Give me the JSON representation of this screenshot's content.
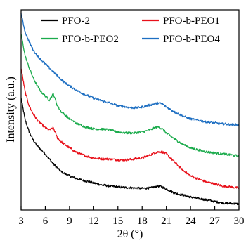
{
  "chart_data": {
    "type": "line",
    "xlabel": "2θ (°)",
    "ylabel": "Intensity (a.u.)",
    "xlim": [
      3,
      30
    ],
    "ylim": [
      0,
      100
    ],
    "xticks": [
      3,
      6,
      9,
      12,
      15,
      18,
      21,
      24,
      27,
      30
    ],
    "x_tick_labels": [
      "3",
      "6",
      "9",
      "12",
      "15",
      "18",
      "21",
      "24",
      "27",
      "30"
    ],
    "y_tick_labels": false,
    "grid": false,
    "legend_position": "top",
    "series": [
      {
        "name": "PFO-2",
        "color": "#000000",
        "x": [
          3,
          3.5,
          4,
          4.5,
          5,
          5.5,
          6,
          6.5,
          7,
          7.5,
          8,
          9,
          10,
          11,
          12,
          13,
          14,
          15,
          16,
          17,
          18,
          19,
          19.5,
          20,
          20.5,
          21,
          22,
          24,
          26,
          28,
          30
        ],
        "y": [
          56,
          45,
          39,
          35,
          32,
          30,
          28,
          25.5,
          23,
          21,
          19,
          17,
          15.5,
          14.5,
          13.5,
          12.5,
          12,
          11.5,
          11.2,
          11,
          10.8,
          11,
          11.5,
          12,
          11.5,
          10.5,
          8.5,
          6.5,
          5,
          3.5,
          3
        ]
      },
      {
        "name": "PFO-b-PEO1",
        "color": "#e8101a",
        "x": [
          3,
          3.5,
          4,
          4.5,
          5,
          5.5,
          6,
          6.5,
          7,
          7.5,
          8,
          9,
          10,
          11,
          12,
          13,
          14,
          15,
          16,
          17,
          18,
          19,
          19.5,
          20,
          20.5,
          21,
          21.5,
          22,
          23,
          24,
          26,
          28,
          30
        ],
        "y": [
          71,
          59,
          52,
          48,
          45,
          43,
          41,
          40,
          41,
          36,
          34,
          31,
          28.5,
          27,
          26,
          25.5,
          25.5,
          25,
          25,
          25.5,
          26,
          27.5,
          28.5,
          29,
          29,
          28,
          26,
          24,
          20,
          17,
          14,
          12,
          11
        ]
      },
      {
        "name": "PFO-b-PEO2",
        "color": "#1bab4c",
        "x": [
          3,
          3.5,
          4,
          4.5,
          5,
          5.5,
          6,
          6.5,
          7,
          7.5,
          8,
          9,
          10,
          11,
          12,
          13,
          14,
          15,
          16,
          17,
          18,
          19,
          19.5,
          20,
          20.5,
          21,
          22,
          23,
          24,
          26,
          28,
          30
        ],
        "y": [
          88,
          77,
          71,
          66,
          62,
          59,
          57,
          55,
          58,
          52,
          49,
          45.5,
          43,
          41.5,
          40.5,
          40.5,
          40,
          39,
          38.5,
          38.5,
          39,
          40,
          41,
          41.5,
          40.5,
          38.5,
          35.5,
          33,
          31,
          29,
          28,
          27
        ]
      },
      {
        "name": "PFO-b-PEO4",
        "color": "#1e6fc2",
        "x": [
          3,
          3.5,
          4,
          4.5,
          5,
          5.5,
          6,
          6.5,
          7,
          7.5,
          8,
          9,
          10,
          11,
          12,
          13,
          14,
          15,
          16,
          17,
          18,
          19,
          19.5,
          20,
          20.5,
          21,
          22,
          23,
          24,
          26,
          28,
          30
        ],
        "y": [
          98,
          89,
          84,
          80,
          77,
          75,
          73,
          71,
          69,
          67,
          65,
          62,
          59.5,
          57.5,
          56,
          54.5,
          53.5,
          52,
          51.5,
          51,
          51.5,
          52.5,
          53,
          53.5,
          53,
          51.5,
          49,
          47,
          45.5,
          44,
          43,
          42.5
        ]
      }
    ]
  }
}
